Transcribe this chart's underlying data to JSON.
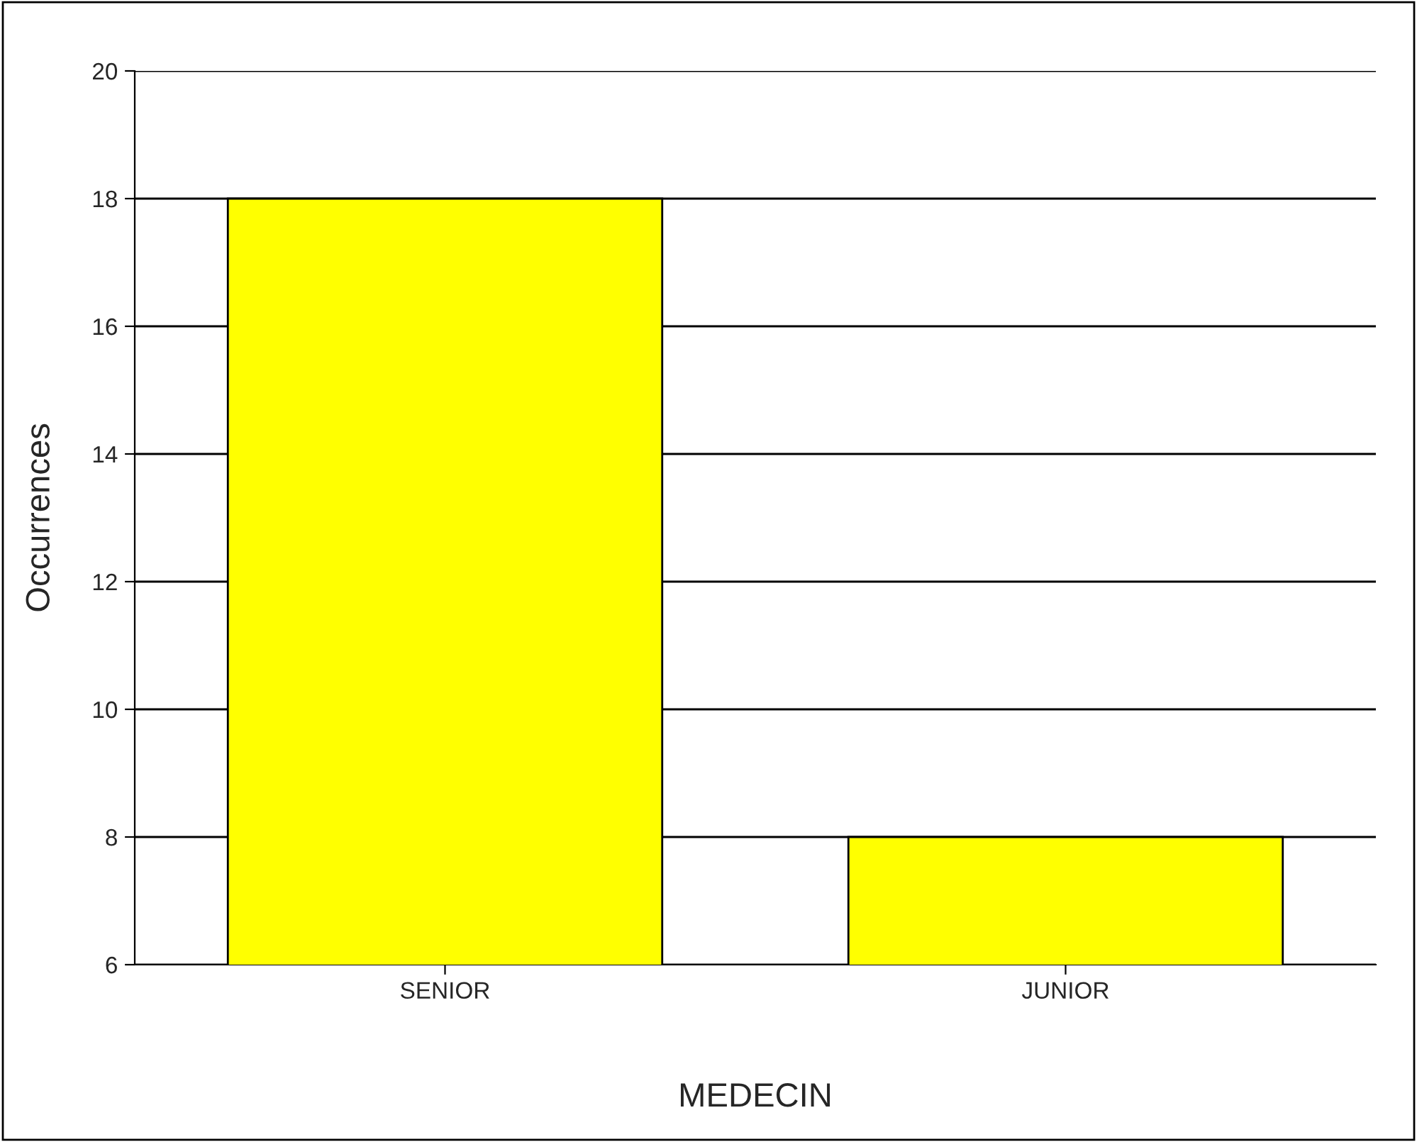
{
  "chart_data": {
    "type": "bar",
    "xlabel": "MEDECIN",
    "ylabel": "Occurrences",
    "categories": [
      "SENIOR",
      "JUNIOR"
    ],
    "values": [
      18,
      8
    ],
    "color": "#ffff00",
    "ylim": [
      6,
      20
    ],
    "yticks": [
      6,
      8,
      10,
      12,
      14,
      16,
      18,
      20
    ],
    "grid": "y"
  }
}
